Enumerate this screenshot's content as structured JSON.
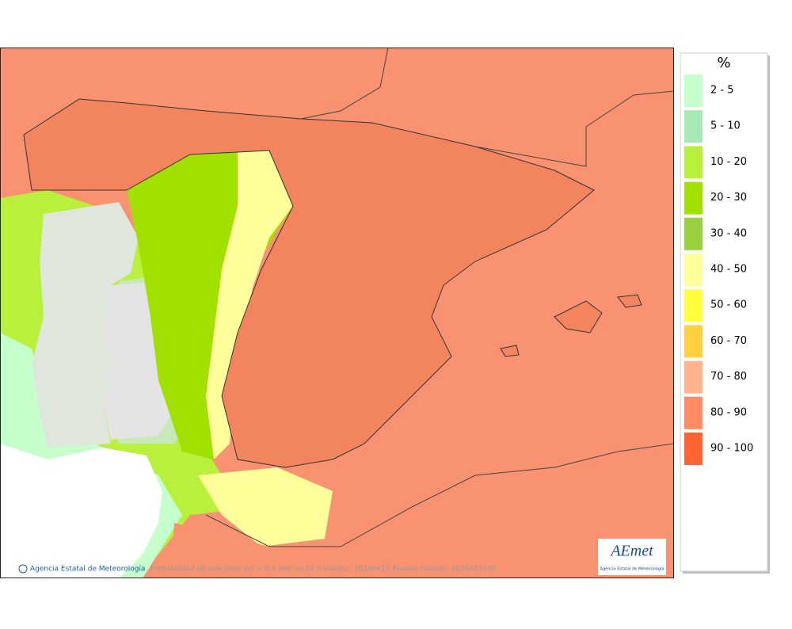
{
  "legend": {
    "title": "%",
    "items": [
      {
        "label": "2 - 5",
        "color": "#c4ffcc"
      },
      {
        "label": "5 - 10",
        "color": "#a6e8b6"
      },
      {
        "label": "10 - 20",
        "color": "#b8f03c"
      },
      {
        "label": "20 - 30",
        "color": "#a2e000"
      },
      {
        "label": "30 - 40",
        "color": "#98d040"
      },
      {
        "label": "40 - 50",
        "color": "#ffff9c"
      },
      {
        "label": "50 - 60",
        "color": "#ffff40"
      },
      {
        "label": "60 - 70",
        "color": "#ffd040"
      },
      {
        "label": "70 - 80",
        "color": "#ffb48c"
      },
      {
        "label": "80 - 90",
        "color": "#ff8c64"
      },
      {
        "label": "90 - 100",
        "color": "#ff6432"
      }
    ]
  },
  "footer": {
    "credit": "Agencia Estatal de Meteorología",
    "caption": "Probabilidad de precipitación > 0.5 mm en 24 h Validez: 20260412 Pasada modelo: 2026041000"
  },
  "logo": {
    "name": "AEmet",
    "subtitle": "Agencia Estatal de Meteorología"
  }
}
